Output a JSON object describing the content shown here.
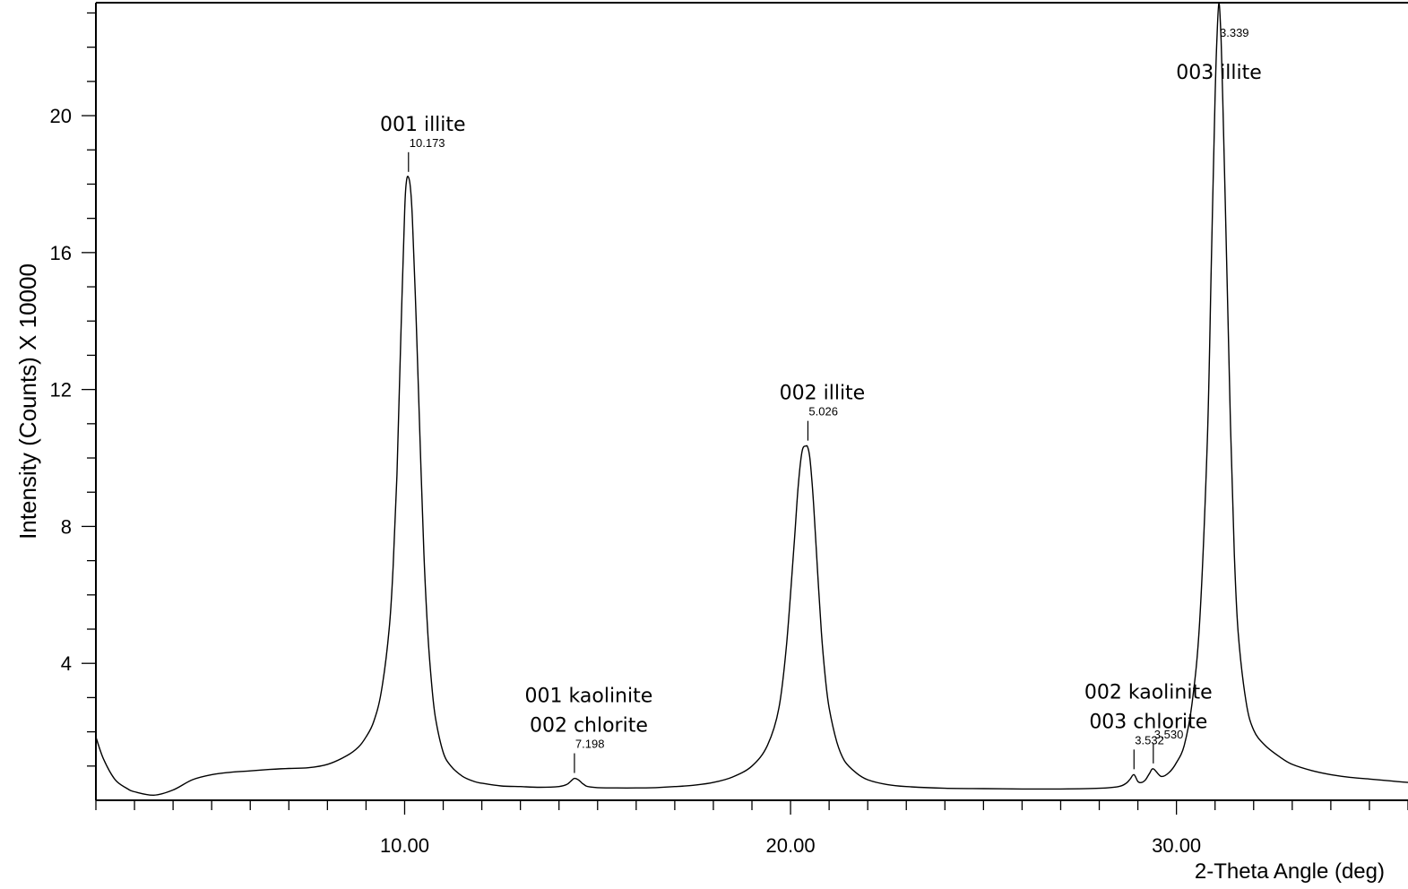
{
  "chart_data": {
    "type": "line",
    "title": "",
    "xlabel": "2-Theta Angle (deg)",
    "ylabel": "Intensity (Counts) X 10000",
    "xlim": [
      2.0,
      36.0
    ],
    "ylim": [
      0,
      23.3
    ],
    "x_ticks": [
      10.0,
      20.0,
      30.0
    ],
    "x_tick_labels": [
      "10.00",
      "20.00",
      "30.00"
    ],
    "x_minor_step": 1.0,
    "y_ticks": [
      4,
      8,
      12,
      16,
      20
    ],
    "y_tick_labels": [
      "4",
      "8",
      "12",
      "16",
      "20"
    ],
    "y_minor_step": 1.0,
    "grid": false,
    "series": [
      {
        "x": [
          2.0,
          2.2,
          2.5,
          2.8,
          3.0,
          3.5,
          4.0,
          4.5,
          5.0,
          5.5,
          6.0,
          6.5,
          7.0,
          7.5,
          8.0,
          8.5,
          8.8,
          9.0,
          9.2,
          9.4,
          9.6,
          9.7,
          9.8,
          9.9,
          10.0,
          10.05,
          10.1,
          10.15,
          10.2,
          10.3,
          10.4,
          10.5,
          10.6,
          10.7,
          10.8,
          11.0,
          11.2,
          11.5,
          11.8,
          12.0,
          12.5,
          13.0,
          13.5,
          14.0,
          14.2,
          14.3,
          14.4,
          14.5,
          14.6,
          14.7,
          14.8,
          15.0,
          15.5,
          16.0,
          16.5,
          17.0,
          17.5,
          18.0,
          18.5,
          19.0,
          19.4,
          19.7,
          19.9,
          20.1,
          20.2,
          20.3,
          20.4,
          20.45,
          20.5,
          20.55,
          20.6,
          20.7,
          20.8,
          20.9,
          21.0,
          21.2,
          21.4,
          21.7,
          22.0,
          22.5,
          23.0,
          24.0,
          25.0,
          26.0,
          27.0,
          28.0,
          28.5,
          28.7,
          28.8,
          28.9,
          29.0,
          29.1,
          29.2,
          29.3,
          29.4,
          29.6,
          29.8,
          30.0,
          30.2,
          30.4,
          30.6,
          30.8,
          30.9,
          31.0,
          31.05,
          31.1,
          31.15,
          31.2,
          31.3,
          31.4,
          31.5,
          31.6,
          31.8,
          32.0,
          32.3,
          32.7,
          33.0,
          33.5,
          34.0,
          34.5,
          35.0,
          35.5,
          36.0
        ],
        "values": [
          1.85,
          1.2,
          0.6,
          0.35,
          0.25,
          0.15,
          0.3,
          0.6,
          0.75,
          0.82,
          0.86,
          0.9,
          0.93,
          0.95,
          1.05,
          1.3,
          1.55,
          1.85,
          2.3,
          3.2,
          5.0,
          6.8,
          9.5,
          13.5,
          17.2,
          18.1,
          18.2,
          17.9,
          17.0,
          14.0,
          10.5,
          7.2,
          4.9,
          3.4,
          2.4,
          1.4,
          1.0,
          0.7,
          0.55,
          0.5,
          0.42,
          0.4,
          0.38,
          0.4,
          0.46,
          0.55,
          0.64,
          0.6,
          0.5,
          0.42,
          0.39,
          0.37,
          0.36,
          0.36,
          0.37,
          0.4,
          0.44,
          0.52,
          0.68,
          1.0,
          1.6,
          2.7,
          4.6,
          7.6,
          9.2,
          10.2,
          10.35,
          10.3,
          10.0,
          9.4,
          8.6,
          6.7,
          4.9,
          3.6,
          2.7,
          1.7,
          1.15,
          0.8,
          0.6,
          0.46,
          0.4,
          0.35,
          0.34,
          0.33,
          0.33,
          0.35,
          0.4,
          0.5,
          0.62,
          0.75,
          0.55,
          0.52,
          0.6,
          0.78,
          0.92,
          0.7,
          0.8,
          1.1,
          1.6,
          2.8,
          5.2,
          10.5,
          15.5,
          20.5,
          22.3,
          23.3,
          22.4,
          20.5,
          15.8,
          11.0,
          7.2,
          4.9,
          2.9,
          2.05,
          1.6,
          1.25,
          1.05,
          0.87,
          0.75,
          0.67,
          0.62,
          0.57,
          0.52
        ]
      }
    ],
    "annotations": [
      {
        "lines": [
          "001 illite"
        ],
        "d_spacing": "10.173",
        "x": 10.1,
        "y": 18.2
      },
      {
        "lines": [
          "001 kaolinite",
          "002 chlorite"
        ],
        "d_spacing": "7.198",
        "x": 14.4,
        "y": 0.64
      },
      {
        "lines": [
          "002 illite"
        ],
        "d_spacing": "5.026",
        "x": 20.45,
        "y": 10.35
      },
      {
        "lines": [
          "002 kaolinite",
          "003 chlorite"
        ],
        "d_spacing": "3.532",
        "x": 28.9,
        "y": 0.75
      },
      {
        "lines": [],
        "d_spacing": "3.530",
        "x": 29.4,
        "y": 0.92
      },
      {
        "lines": [
          "003 illite"
        ],
        "d_spacing": "3.339",
        "x": 31.1,
        "y": 23.3
      }
    ]
  }
}
